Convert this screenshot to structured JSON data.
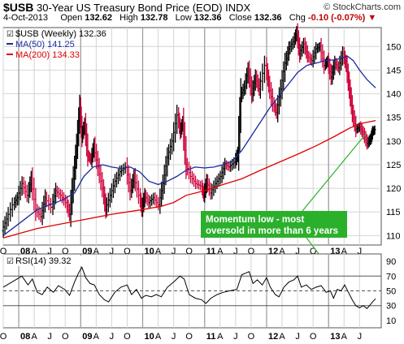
{
  "header": {
    "symbol": "$USB",
    "name": "30-Year US Treasury Bond Price (EOD)",
    "exchange": "INDX",
    "brand": "© StockCharts.com",
    "date": "4-Oct-2013",
    "open_label": "Open",
    "open": "132.62",
    "high_label": "High",
    "high": "132.78",
    "low_label": "Low",
    "low": "132.36",
    "close_label": "Close",
    "close": "132.36",
    "chg_label": "Chg",
    "chg": "-0.10 (-0.07%)"
  },
  "colors": {
    "price": "#000000",
    "up_bar": "#000000",
    "down_bar": "#d0003a",
    "ma50": "#1a2a9c",
    "ma200": "#e00000",
    "annotation": "#2bb02b",
    "annotation_text": "#ffffff",
    "grid": "#d4d4d4",
    "panel_border": "#555555",
    "text": "#000000"
  },
  "chart_data": [
    {
      "type": "line",
      "panel": "price",
      "legend": [
        {
          "label": "$USB (Weekly) 132.36",
          "color": "#000000"
        },
        {
          "label": "MA(50) 141.25",
          "color": "#1a2a9c"
        },
        {
          "label": "MA(200) 134.33",
          "color": "#e00000"
        }
      ],
      "ylim": [
        108,
        154
      ],
      "yticks": [
        110,
        115,
        120,
        125,
        130,
        135,
        140,
        145,
        150
      ],
      "xlim": [
        2007.75,
        2013.85
      ],
      "xtick_labels": [
        {
          "x": 2007.75,
          "label": "O"
        },
        {
          "x": 2008.0,
          "label": "08"
        },
        {
          "x": 2008.25,
          "label": "A"
        },
        {
          "x": 2008.5,
          "label": "J"
        },
        {
          "x": 2008.75,
          "label": "O"
        },
        {
          "x": 2009.0,
          "label": "09"
        },
        {
          "x": 2009.25,
          "label": "A"
        },
        {
          "x": 2009.5,
          "label": "J"
        },
        {
          "x": 2009.75,
          "label": "O"
        },
        {
          "x": 2010.0,
          "label": "10"
        },
        {
          "x": 2010.25,
          "label": "A"
        },
        {
          "x": 2010.5,
          "label": "J"
        },
        {
          "x": 2010.75,
          "label": "O"
        },
        {
          "x": 2011.0,
          "label": "11"
        },
        {
          "x": 2011.25,
          "label": "A"
        },
        {
          "x": 2011.5,
          "label": "J"
        },
        {
          "x": 2011.75,
          "label": "O"
        },
        {
          "x": 2012.0,
          "label": "12"
        },
        {
          "x": 2012.25,
          "label": "A"
        },
        {
          "x": 2012.5,
          "label": "J"
        },
        {
          "x": 2012.75,
          "label": "O"
        },
        {
          "x": 2013.0,
          "label": "13"
        },
        {
          "x": 2013.25,
          "label": "A"
        },
        {
          "x": 2013.5,
          "label": "J"
        }
      ],
      "year_boundaries": [
        2008.0,
        2009.0,
        2010.0,
        2011.0,
        2012.0,
        2013.0
      ],
      "price_path": [
        [
          2007.75,
          111.0
        ],
        [
          2007.83,
          113.5
        ],
        [
          2007.93,
          116.5
        ],
        [
          2008.0,
          118.0
        ],
        [
          2008.08,
          121.0
        ],
        [
          2008.16,
          118.5
        ],
        [
          2008.22,
          122.0
        ],
        [
          2008.3,
          115.5
        ],
        [
          2008.38,
          114.0
        ],
        [
          2008.45,
          118.0
        ],
        [
          2008.55,
          116.0
        ],
        [
          2008.62,
          119.5
        ],
        [
          2008.7,
          118.5
        ],
        [
          2008.78,
          117.0
        ],
        [
          2008.84,
          114.5
        ],
        [
          2008.9,
          122.0
        ],
        [
          2008.95,
          129.0
        ],
        [
          2009.0,
          137.0
        ],
        [
          2009.03,
          131.0
        ],
        [
          2009.08,
          133.5
        ],
        [
          2009.13,
          127.0
        ],
        [
          2009.18,
          126.0
        ],
        [
          2009.23,
          129.0
        ],
        [
          2009.3,
          124.5
        ],
        [
          2009.37,
          120.0
        ],
        [
          2009.42,
          115.5
        ],
        [
          2009.5,
          118.5
        ],
        [
          2009.58,
          121.5
        ],
        [
          2009.66,
          123.5
        ],
        [
          2009.75,
          124.5
        ],
        [
          2009.82,
          119.5
        ],
        [
          2009.88,
          122.5
        ],
        [
          2009.96,
          118.5
        ],
        [
          2010.0,
          115.5
        ],
        [
          2010.05,
          118.5
        ],
        [
          2010.12,
          117.0
        ],
        [
          2010.2,
          118.0
        ],
        [
          2010.28,
          116.5
        ],
        [
          2010.35,
          121.0
        ],
        [
          2010.42,
          126.5
        ],
        [
          2010.5,
          130.0
        ],
        [
          2010.58,
          135.5
        ],
        [
          2010.62,
          132.0
        ],
        [
          2010.66,
          134.0
        ],
        [
          2010.72,
          125.0
        ],
        [
          2010.8,
          122.5
        ],
        [
          2010.88,
          121.0
        ],
        [
          2010.96,
          120.5
        ],
        [
          2011.0,
          118.5
        ],
        [
          2011.05,
          121.5
        ],
        [
          2011.12,
          119.0
        ],
        [
          2011.2,
          121.0
        ],
        [
          2011.28,
          122.5
        ],
        [
          2011.35,
          125.0
        ],
        [
          2011.42,
          124.5
        ],
        [
          2011.5,
          125.5
        ],
        [
          2011.55,
          127.5
        ],
        [
          2011.6,
          139.5
        ],
        [
          2011.66,
          141.5
        ],
        [
          2011.72,
          145.0
        ],
        [
          2011.78,
          140.0
        ],
        [
          2011.84,
          143.5
        ],
        [
          2011.9,
          141.0
        ],
        [
          2012.0,
          146.0
        ],
        [
          2012.05,
          142.0
        ],
        [
          2012.12,
          138.0
        ],
        [
          2012.18,
          136.0
        ],
        [
          2012.25,
          141.0
        ],
        [
          2012.32,
          146.5
        ],
        [
          2012.38,
          149.5
        ],
        [
          2012.45,
          151.0
        ],
        [
          2012.5,
          153.0
        ],
        [
          2012.55,
          148.5
        ],
        [
          2012.62,
          150.5
        ],
        [
          2012.68,
          148.0
        ],
        [
          2012.75,
          147.0
        ],
        [
          2012.82,
          149.5
        ],
        [
          2012.88,
          150.0
        ],
        [
          2012.95,
          146.0
        ],
        [
          2013.0,
          147.0
        ],
        [
          2013.06,
          143.5
        ],
        [
          2013.12,
          146.5
        ],
        [
          2013.18,
          145.5
        ],
        [
          2013.25,
          148.5
        ],
        [
          2013.3,
          146.0
        ],
        [
          2013.35,
          141.0
        ],
        [
          2013.4,
          136.0
        ],
        [
          2013.46,
          132.5
        ],
        [
          2013.52,
          133.0
        ],
        [
          2013.58,
          131.5
        ],
        [
          2013.64,
          129.5
        ],
        [
          2013.69,
          130.5
        ],
        [
          2013.72,
          132.0
        ],
        [
          2013.76,
          132.4
        ]
      ],
      "ma50_path": [
        [
          2007.75,
          110.0
        ],
        [
          2008.0,
          112.5
        ],
        [
          2008.3,
          115.5
        ],
        [
          2008.7,
          117.5
        ],
        [
          2008.9,
          119.0
        ],
        [
          2009.05,
          122.5
        ],
        [
          2009.2,
          124.5
        ],
        [
          2009.35,
          125.0
        ],
        [
          2009.5,
          124.5
        ],
        [
          2009.65,
          124.2
        ],
        [
          2009.8,
          124.5
        ],
        [
          2009.95,
          123.5
        ],
        [
          2010.1,
          121.5
        ],
        [
          2010.25,
          120.8
        ],
        [
          2010.4,
          121.5
        ],
        [
          2010.55,
          122.5
        ],
        [
          2010.7,
          123.8
        ],
        [
          2010.85,
          124.5
        ],
        [
          2011.0,
          124.3
        ],
        [
          2011.15,
          124.5
        ],
        [
          2011.3,
          125.0
        ],
        [
          2011.45,
          125.8
        ],
        [
          2011.6,
          128.0
        ],
        [
          2011.75,
          131.0
        ],
        [
          2011.9,
          134.0
        ],
        [
          2012.05,
          137.0
        ],
        [
          2012.2,
          139.5
        ],
        [
          2012.35,
          142.0
        ],
        [
          2012.5,
          144.5
        ],
        [
          2012.65,
          146.0
        ],
        [
          2012.8,
          146.5
        ],
        [
          2012.95,
          147.0
        ],
        [
          2013.1,
          147.2
        ],
        [
          2013.2,
          147.5
        ],
        [
          2013.3,
          148.0
        ],
        [
          2013.4,
          147.0
        ],
        [
          2013.5,
          145.0
        ],
        [
          2013.62,
          143.0
        ],
        [
          2013.76,
          141.25
        ]
      ],
      "ma200_path": [
        [
          2007.75,
          109.5
        ],
        [
          2008.3,
          111.5
        ],
        [
          2008.9,
          113.0
        ],
        [
          2009.5,
          114.5
        ],
        [
          2010.0,
          115.5
        ],
        [
          2010.3,
          116.2
        ],
        [
          2010.5,
          117.0
        ],
        [
          2010.7,
          118.5
        ],
        [
          2011.0,
          119.5
        ],
        [
          2011.3,
          120.8
        ],
        [
          2011.6,
          122.0
        ],
        [
          2011.9,
          123.8
        ],
        [
          2012.2,
          125.5
        ],
        [
          2012.5,
          127.2
        ],
        [
          2012.8,
          129.0
        ],
        [
          2013.1,
          131.0
        ],
        [
          2013.35,
          132.8
        ],
        [
          2013.55,
          133.8
        ],
        [
          2013.76,
          134.33
        ]
      ],
      "annotation": {
        "text_line1": "Momentum low - most",
        "text_line2": "oversold in more than 6 years",
        "pointer_to": [
          2013.6,
          131.5
        ]
      }
    },
    {
      "type": "line",
      "panel": "rsi",
      "legend": [
        {
          "label": "RSI(14) 39.32",
          "color": "#000000"
        }
      ],
      "ylim": [
        0,
        100
      ],
      "yticks": [
        10,
        30,
        50,
        70,
        90
      ],
      "reference_lines": [
        30,
        50,
        70
      ],
      "rsi_path": [
        [
          2007.75,
          55
        ],
        [
          2007.85,
          60
        ],
        [
          2007.95,
          65
        ],
        [
          2008.05,
          70
        ],
        [
          2008.15,
          58
        ],
        [
          2008.22,
          66
        ],
        [
          2008.3,
          48
        ],
        [
          2008.38,
          45
        ],
        [
          2008.46,
          55
        ],
        [
          2008.56,
          48
        ],
        [
          2008.64,
          57
        ],
        [
          2008.74,
          52
        ],
        [
          2008.82,
          44
        ],
        [
          2008.9,
          62
        ],
        [
          2008.97,
          75
        ],
        [
          2009.02,
          82
        ],
        [
          2009.08,
          68
        ],
        [
          2009.15,
          60
        ],
        [
          2009.22,
          58
        ],
        [
          2009.3,
          45
        ],
        [
          2009.38,
          38
        ],
        [
          2009.45,
          35
        ],
        [
          2009.55,
          48
        ],
        [
          2009.65,
          55
        ],
        [
          2009.75,
          58
        ],
        [
          2009.82,
          45
        ],
        [
          2009.9,
          52
        ],
        [
          2009.98,
          40
        ],
        [
          2010.05,
          44
        ],
        [
          2010.14,
          42
        ],
        [
          2010.22,
          45
        ],
        [
          2010.3,
          42
        ],
        [
          2010.4,
          55
        ],
        [
          2010.5,
          62
        ],
        [
          2010.6,
          70
        ],
        [
          2010.67,
          66
        ],
        [
          2010.75,
          45
        ],
        [
          2010.85,
          40
        ],
        [
          2010.95,
          38
        ],
        [
          2011.02,
          33
        ],
        [
          2011.1,
          40
        ],
        [
          2011.2,
          45
        ],
        [
          2011.3,
          48
        ],
        [
          2011.4,
          50
        ],
        [
          2011.52,
          52
        ],
        [
          2011.6,
          72
        ],
        [
          2011.66,
          74
        ],
        [
          2011.72,
          76
        ],
        [
          2011.78,
          60
        ],
        [
          2011.85,
          65
        ],
        [
          2011.93,
          58
        ],
        [
          2012.0,
          68
        ],
        [
          2012.06,
          55
        ],
        [
          2012.14,
          45
        ],
        [
          2012.2,
          42
        ],
        [
          2012.28,
          55
        ],
        [
          2012.36,
          62
        ],
        [
          2012.44,
          65
        ],
        [
          2012.5,
          70
        ],
        [
          2012.56,
          55
        ],
        [
          2012.64,
          58
        ],
        [
          2012.72,
          52
        ],
        [
          2012.8,
          55
        ],
        [
          2012.88,
          57
        ],
        [
          2012.96,
          48
        ],
        [
          2013.03,
          50
        ],
        [
          2013.08,
          40
        ],
        [
          2013.14,
          52
        ],
        [
          2013.2,
          50
        ],
        [
          2013.26,
          58
        ],
        [
          2013.32,
          48
        ],
        [
          2013.38,
          38
        ],
        [
          2013.44,
          30
        ],
        [
          2013.5,
          27
        ],
        [
          2013.56,
          30
        ],
        [
          2013.62,
          26
        ],
        [
          2013.68,
          32
        ],
        [
          2013.72,
          36
        ],
        [
          2013.76,
          39.32
        ]
      ],
      "xtick_labels_bottom": [
        {
          "x": 2007.75,
          "label": "O"
        },
        {
          "x": 2008.0,
          "label": "08"
        },
        {
          "x": 2008.25,
          "label": "A"
        },
        {
          "x": 2008.5,
          "label": "J"
        },
        {
          "x": 2008.75,
          "label": "O"
        },
        {
          "x": 2009.0,
          "label": "09"
        },
        {
          "x": 2009.25,
          "label": "A"
        },
        {
          "x": 2009.5,
          "label": "J"
        },
        {
          "x": 2009.75,
          "label": "O"
        },
        {
          "x": 2010.0,
          "label": "10"
        },
        {
          "x": 2010.25,
          "label": "A"
        },
        {
          "x": 2010.5,
          "label": "J"
        },
        {
          "x": 2010.75,
          "label": "O"
        },
        {
          "x": 2011.0,
          "label": "11"
        },
        {
          "x": 2011.25,
          "label": "A"
        },
        {
          "x": 2011.5,
          "label": "J"
        },
        {
          "x": 2011.75,
          "label": "O"
        },
        {
          "x": 2012.0,
          "label": "12"
        },
        {
          "x": 2012.25,
          "label": "A"
        },
        {
          "x": 2012.5,
          "label": "J"
        },
        {
          "x": 2012.75,
          "label": "O"
        },
        {
          "x": 2013.0,
          "label": "13"
        },
        {
          "x": 2013.25,
          "label": "A"
        },
        {
          "x": 2013.5,
          "label": "J"
        }
      ]
    }
  ]
}
